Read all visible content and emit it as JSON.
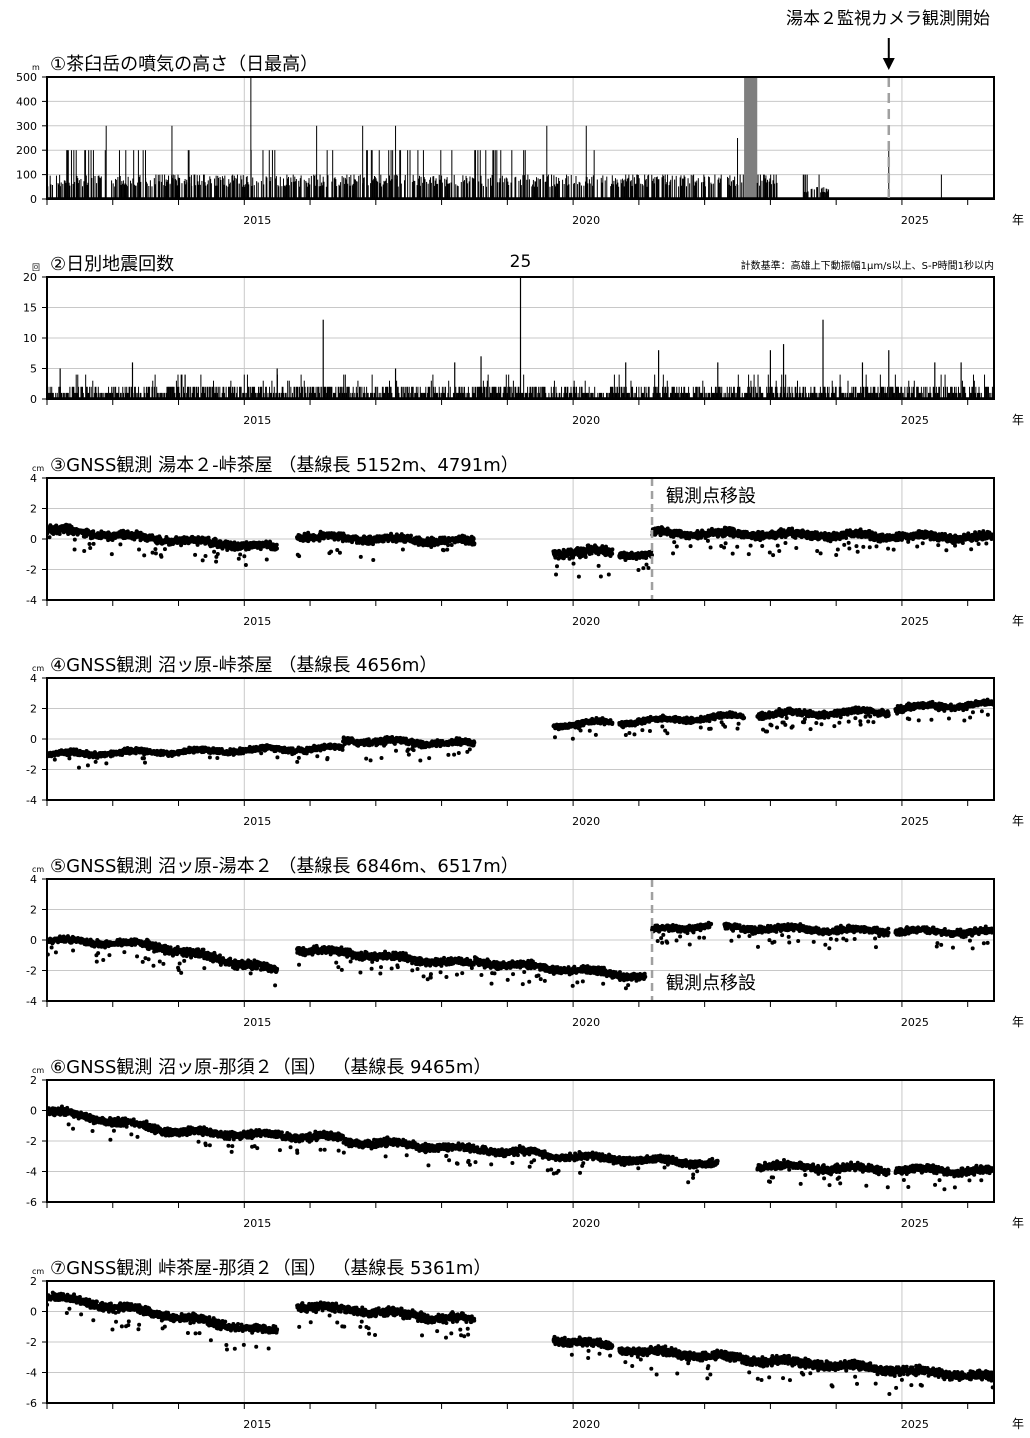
{
  "header_annotation": "湯本２監視カメラ観測開始",
  "year_unit": "年",
  "colors": {
    "data": "#000000",
    "grid": "#c8c8c8",
    "gray_bar": "#7f7f7f",
    "dashed": "#a0a0a0"
  },
  "chart_data": [
    {
      "id": "plume",
      "type": "bar",
      "title": "①茶臼岳の噴気の高さ（日最高）",
      "unit": "m",
      "ylim": [
        0,
        500
      ],
      "yticks": [
        0,
        100,
        200,
        300,
        400,
        500
      ],
      "xlim": [
        2012.0,
        2026.4
      ],
      "xticks": [
        "2015",
        "2020",
        "2025"
      ],
      "gray_band": [
        2022.6,
        2022.8
      ],
      "camera_start": 2024.8,
      "tall_spikes": [
        [
          2012.9,
          300
        ],
        [
          2013.9,
          300
        ],
        [
          2015.1,
          500
        ],
        [
          2016.1,
          300
        ],
        [
          2016.8,
          300
        ],
        [
          2017.3,
          300
        ],
        [
          2019.6,
          300
        ],
        [
          2020.2,
          300
        ],
        [
          2022.5,
          250
        ],
        [
          2024.8,
          200
        ],
        [
          2025.6,
          100
        ]
      ],
      "segments": [
        {
          "from": 2012.0,
          "to": 2012.55,
          "level": 100,
          "high": 200
        },
        {
          "from": 2012.55,
          "to": 2013.5,
          "level": 100,
          "high": 200
        },
        {
          "from": 2013.5,
          "to": 2014.2,
          "level": 100,
          "high": 100
        },
        {
          "from": 2013.8,
          "to": 2014.2,
          "level": 100,
          "high": 200
        },
        {
          "from": 2014.2,
          "to": 2014.9,
          "level": 100,
          "high": 100
        },
        {
          "from": 2014.9,
          "to": 2015.6,
          "level": 100,
          "high": 200
        },
        {
          "from": 2015.6,
          "to": 2016.2,
          "level": 100,
          "high": 100
        },
        {
          "from": 2016.2,
          "to": 2016.5,
          "level": 100,
          "high": 200
        },
        {
          "from": 2016.5,
          "to": 2016.8,
          "level": 100,
          "high": 100
        },
        {
          "from": 2016.8,
          "to": 2019.3,
          "level": 100,
          "high": 200
        },
        {
          "from": 2019.3,
          "to": 2020.2,
          "level": 100,
          "high": 100
        },
        {
          "from": 2020.2,
          "to": 2020.5,
          "level": 100,
          "high": 200
        },
        {
          "from": 2020.5,
          "to": 2021.4,
          "level": 100,
          "high": 100
        },
        {
          "from": 2021.4,
          "to": 2022.0,
          "level": 100,
          "high": 100
        },
        {
          "from": 2022.0,
          "to": 2022.6,
          "level": 100,
          "high": 100
        },
        {
          "from": 2022.8,
          "to": 2023.1,
          "level": 100,
          "high": 100
        },
        {
          "from": 2023.5,
          "to": 2023.9,
          "level": 50,
          "high": 100
        }
      ]
    },
    {
      "id": "quakes",
      "type": "bar",
      "title": "②日別地震回数",
      "unit": "回",
      "ylim": [
        0,
        20
      ],
      "yticks": [
        0,
        5,
        10,
        15,
        20
      ],
      "xlim": [
        2012.0,
        2026.4
      ],
      "xticks": [
        "2015",
        "2020",
        "2025"
      ],
      "overflow_label": "25",
      "overflow_x": 2019.2,
      "criteria": "計数基準：高雄上下動振幅1μm/s以上、S-P時間1秒以内",
      "spikes": [
        [
          2012.2,
          5
        ],
        [
          2013.3,
          6
        ],
        [
          2014.1,
          4
        ],
        [
          2015.5,
          5
        ],
        [
          2016.2,
          13
        ],
        [
          2017.3,
          5
        ],
        [
          2018.2,
          6
        ],
        [
          2018.6,
          7
        ],
        [
          2019.2,
          25
        ],
        [
          2020.8,
          6
        ],
        [
          2021.3,
          8
        ],
        [
          2022.2,
          6
        ],
        [
          2023.0,
          8
        ],
        [
          2023.2,
          9
        ],
        [
          2023.8,
          13
        ],
        [
          2024.4,
          6
        ],
        [
          2024.8,
          8
        ],
        [
          2025.5,
          6
        ],
        [
          2025.9,
          6
        ],
        [
          2026.1,
          3
        ]
      ]
    },
    {
      "id": "gnss3",
      "type": "scatter",
      "title": "③GNSS観測 湯本２-峠茶屋 （基線長 5152m、4791m）",
      "unit": "cm",
      "ylim": [
        -4,
        4
      ],
      "yticks": [
        -4,
        -2,
        0,
        2,
        4
      ],
      "xlim": [
        2012.0,
        2026.4
      ],
      "xticks": [
        "2015",
        "2020",
        "2025"
      ],
      "annotation": "観測点移設",
      "relocation": 2021.2,
      "segments": [
        {
          "from": 2012.0,
          "to": 2015.5,
          "y0": 0.6,
          "y1": -0.6,
          "spread": 0.35
        },
        {
          "from": 2015.8,
          "to": 2018.5,
          "y0": 0.2,
          "y1": -0.2,
          "spread": 0.35
        },
        {
          "from": 2019.7,
          "to": 2020.6,
          "y0": -0.9,
          "y1": -0.8,
          "spread": 0.45
        },
        {
          "from": 2020.7,
          "to": 2021.2,
          "y0": -1.0,
          "y1": -1.1,
          "spread": 0.3
        },
        {
          "from": 2021.2,
          "to": 2026.4,
          "y0": 0.4,
          "y1": 0.1,
          "spread": 0.35
        }
      ]
    },
    {
      "id": "gnss4",
      "type": "scatter",
      "title": "④GNSS観測 沼ッ原-峠茶屋 （基線長 4656m）",
      "unit": "cm",
      "ylim": [
        -4,
        4
      ],
      "yticks": [
        -4,
        -2,
        0,
        2,
        4
      ],
      "xlim": [
        2012.0,
        2026.4
      ],
      "xticks": [
        "2015",
        "2020",
        "2025"
      ],
      "segments": [
        {
          "from": 2012.0,
          "to": 2016.5,
          "y0": -1.0,
          "y1": -0.6,
          "spread": 0.25
        },
        {
          "from": 2016.5,
          "to": 2018.5,
          "y0": -0.1,
          "y1": -0.3,
          "spread": 0.3
        },
        {
          "from": 2019.7,
          "to": 2020.6,
          "y0": 0.9,
          "y1": 1.1,
          "spread": 0.25
        },
        {
          "from": 2020.7,
          "to": 2022.6,
          "y0": 1.1,
          "y1": 1.5,
          "spread": 0.25
        },
        {
          "from": 2022.8,
          "to": 2024.8,
          "y0": 1.6,
          "y1": 1.8,
          "spread": 0.3
        },
        {
          "from": 2024.9,
          "to": 2026.4,
          "y0": 2.0,
          "y1": 2.3,
          "spread": 0.3
        }
      ]
    },
    {
      "id": "gnss5",
      "type": "scatter",
      "title": "⑤GNSS観測 沼ッ原-湯本２ （基線長 6846m、6517m）",
      "unit": "cm",
      "ylim": [
        -4,
        4
      ],
      "yticks": [
        -4,
        -2,
        0,
        2,
        4
      ],
      "xlim": [
        2012.0,
        2026.4
      ],
      "xticks": [
        "2015",
        "2020",
        "2025"
      ],
      "annotation": "観測点移設",
      "relocation": 2021.2,
      "segments": [
        {
          "from": 2012.0,
          "to": 2013.5,
          "y0": 0.0,
          "y1": -0.3,
          "spread": 0.3
        },
        {
          "from": 2013.5,
          "to": 2015.5,
          "y0": -0.3,
          "y1": -2.0,
          "spread": 0.4
        },
        {
          "from": 2015.8,
          "to": 2018.5,
          "y0": -0.6,
          "y1": -1.6,
          "spread": 0.35
        },
        {
          "from": 2018.5,
          "to": 2021.1,
          "y0": -1.4,
          "y1": -2.4,
          "spread": 0.35
        },
        {
          "from": 2021.2,
          "to": 2022.1,
          "y0": 0.6,
          "y1": 1.0,
          "spread": 0.3
        },
        {
          "from": 2022.3,
          "to": 2024.8,
          "y0": 0.8,
          "y1": 0.6,
          "spread": 0.3
        },
        {
          "from": 2024.9,
          "to": 2026.4,
          "y0": 0.6,
          "y1": 0.5,
          "spread": 0.3
        }
      ]
    },
    {
      "id": "gnss6",
      "type": "scatter",
      "title": "⑥GNSS観測 沼ッ原-那須２（国） （基線長 9465m）",
      "unit": "cm",
      "ylim": [
        -6,
        2
      ],
      "yticks": [
        -6,
        -4,
        -2,
        0,
        2
      ],
      "xlim": [
        2012.0,
        2026.4
      ],
      "xticks": [
        "2015",
        "2020",
        "2025"
      ],
      "segments": [
        {
          "from": 2012.0,
          "to": 2014.0,
          "y0": 0.0,
          "y1": -1.4,
          "spread": 0.35
        },
        {
          "from": 2014.0,
          "to": 2016.5,
          "y0": -1.4,
          "y1": -1.8,
          "spread": 0.35
        },
        {
          "from": 2016.5,
          "to": 2019.5,
          "y0": -2.0,
          "y1": -2.8,
          "spread": 0.35
        },
        {
          "from": 2019.5,
          "to": 2022.2,
          "y0": -2.9,
          "y1": -3.5,
          "spread": 0.35
        },
        {
          "from": 2022.8,
          "to": 2024.8,
          "y0": -3.6,
          "y1": -3.9,
          "spread": 0.35
        },
        {
          "from": 2024.9,
          "to": 2026.4,
          "y0": -3.9,
          "y1": -4.0,
          "spread": 0.35
        }
      ]
    },
    {
      "id": "gnss7",
      "type": "scatter",
      "title": "⑦GNSS観測 峠茶屋-那須２（国） （基線長 5361m）",
      "unit": "cm",
      "ylim": [
        -6,
        2
      ],
      "yticks": [
        -6,
        -4,
        -2,
        0,
        2
      ],
      "xlim": [
        2012.0,
        2026.4
      ],
      "xticks": [
        "2015",
        "2020",
        "2025"
      ],
      "segments": [
        {
          "from": 2012.0,
          "to": 2015.5,
          "y0": 1.0,
          "y1": -1.4,
          "spread": 0.4
        },
        {
          "from": 2015.8,
          "to": 2018.5,
          "y0": 0.4,
          "y1": -0.6,
          "spread": 0.4
        },
        {
          "from": 2019.7,
          "to": 2020.6,
          "y0": -1.8,
          "y1": -2.3,
          "spread": 0.35
        },
        {
          "from": 2020.7,
          "to": 2026.4,
          "y0": -2.5,
          "y1": -4.3,
          "spread": 0.4
        }
      ]
    }
  ]
}
